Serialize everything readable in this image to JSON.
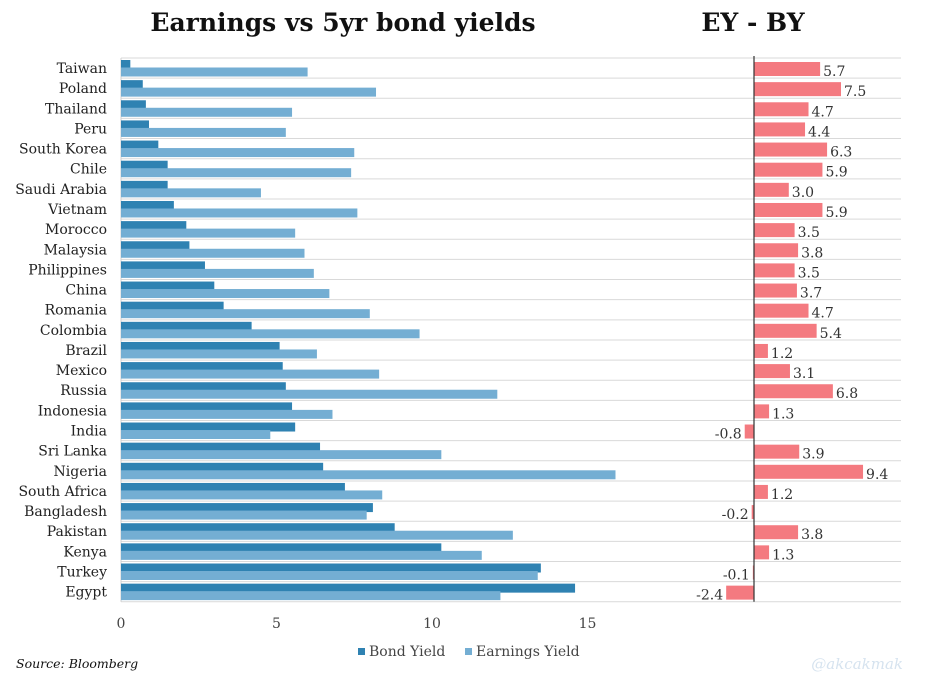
{
  "chart_data": [
    {
      "type": "bar",
      "orientation": "horizontal",
      "title": "Earnings vs 5yr bond yields",
      "categories": [
        "Taiwan",
        "Poland",
        "Thailand",
        "Peru",
        "South Korea",
        "Chile",
        "Saudi Arabia",
        "Vietnam",
        "Morocco",
        "Malaysia",
        "Philippines",
        "China",
        "Romania",
        "Colombia",
        "Brazil",
        "Mexico",
        "Russia",
        "Indonesia",
        "India",
        "Sri Lanka",
        "Nigeria",
        "South Africa",
        "Bangladesh",
        "Pakistan",
        "Kenya",
        "Turkey",
        "Egypt"
      ],
      "series": [
        {
          "name": "Bond Yield",
          "values": [
            0.3,
            0.7,
            0.8,
            0.9,
            1.2,
            1.5,
            1.5,
            1.7,
            2.1,
            2.2,
            2.7,
            3.0,
            3.3,
            4.2,
            5.1,
            5.2,
            5.3,
            5.5,
            5.6,
            6.4,
            6.5,
            7.2,
            8.1,
            8.8,
            10.3,
            13.5,
            14.6
          ]
        },
        {
          "name": "Earnings Yield",
          "values": [
            6.0,
            8.2,
            5.5,
            5.3,
            7.5,
            7.4,
            4.5,
            7.6,
            5.6,
            5.9,
            6.2,
            6.7,
            8.0,
            9.6,
            6.3,
            8.3,
            12.1,
            6.8,
            4.8,
            10.3,
            15.9,
            8.4,
            7.9,
            12.6,
            11.6,
            13.4,
            12.2
          ]
        }
      ],
      "xlim": [
        0,
        25
      ],
      "xticks": [
        0,
        5,
        10,
        15
      ],
      "xlabel": "",
      "ylabel": "",
      "legend": "bottom-center",
      "grid": "horizontal",
      "colors": {
        "Bond Yield": "#2f82b2",
        "Earnings Yield": "#74aed3"
      }
    },
    {
      "type": "bar",
      "orientation": "horizontal",
      "title": "EY - BY",
      "categories": [
        "Taiwan",
        "Poland",
        "Thailand",
        "Peru",
        "South Korea",
        "Chile",
        "Saudi Arabia",
        "Vietnam",
        "Morocco",
        "Malaysia",
        "Philippines",
        "China",
        "Romania",
        "Colombia",
        "Brazil",
        "Mexico",
        "Russia",
        "Indonesia",
        "India",
        "Sri Lanka",
        "Nigeria",
        "South Africa",
        "Bangladesh",
        "Pakistan",
        "Kenya",
        "Turkey",
        "Egypt"
      ],
      "values": [
        5.7,
        7.5,
        4.7,
        4.4,
        6.3,
        5.9,
        3.0,
        5.9,
        3.5,
        3.8,
        3.5,
        3.7,
        4.7,
        5.4,
        1.2,
        3.1,
        6.8,
        1.3,
        -0.8,
        3.9,
        9.4,
        1.2,
        -0.2,
        3.8,
        1.3,
        -0.1,
        -2.4
      ],
      "labels": [
        "5.7",
        "7.5",
        "4.7",
        "4.4",
        "6.3",
        "5.9",
        "3.0",
        "5.9",
        "3.5",
        "3.8",
        "3.5",
        "3.7",
        "4.7",
        "5.4",
        "1.2",
        "3.1",
        "6.8",
        "1.3",
        "-0.8",
        "3.9",
        "9.4",
        "1.2",
        "-0.2",
        "3.8",
        "1.3",
        "-0.1",
        "-2.4"
      ],
      "color": "#f47a80",
      "data_labels": true
    }
  ],
  "footer": {
    "source": "Source: Bloomberg",
    "credit": "@akcakmak"
  }
}
